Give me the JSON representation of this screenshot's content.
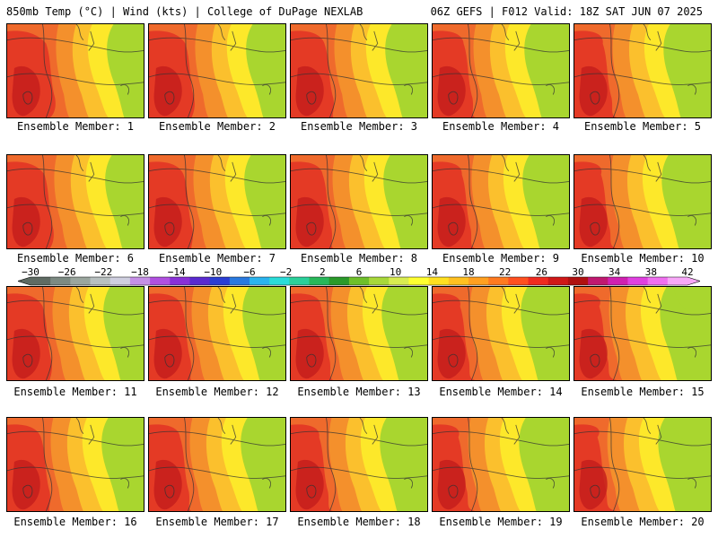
{
  "header": {
    "left_title": "850mb Temp (°C) | Wind (kts) | College of DuPage NEXLAB",
    "right_title": "06Z GEFS | F012 Valid: 18Z SAT JUN 07 2025"
  },
  "panels": [
    {
      "caption": "Ensemble Member: 1"
    },
    {
      "caption": "Ensemble Member: 2"
    },
    {
      "caption": "Ensemble Member: 3"
    },
    {
      "caption": "Ensemble Member: 4"
    },
    {
      "caption": "Ensemble Member: 5"
    },
    {
      "caption": "Ensemble Member: 6"
    },
    {
      "caption": "Ensemble Member: 7"
    },
    {
      "caption": "Ensemble Member: 8"
    },
    {
      "caption": "Ensemble Member: 9"
    },
    {
      "caption": "Ensemble Member: 10"
    },
    {
      "caption": "Ensemble Member: 11"
    },
    {
      "caption": "Ensemble Member: 12"
    },
    {
      "caption": "Ensemble Member: 13"
    },
    {
      "caption": "Ensemble Member: 14"
    },
    {
      "caption": "Ensemble Member: 15"
    },
    {
      "caption": "Ensemble Member: 16"
    },
    {
      "caption": "Ensemble Member: 17"
    },
    {
      "caption": "Ensemble Member: 18"
    },
    {
      "caption": "Ensemble Member: 19"
    },
    {
      "caption": "Ensemble Member: 20"
    }
  ],
  "colorbar": {
    "labels": [
      "−30",
      "−26",
      "−22",
      "−18",
      "−14",
      "−10",
      "−6",
      "−2",
      "2",
      "6",
      "10",
      "14",
      "18",
      "22",
      "26",
      "30",
      "34",
      "38",
      "42"
    ],
    "colors": [
      "#5f6b63",
      "#7c8a82",
      "#9aa69e",
      "#b8c0c0",
      "#cfcfe0",
      "#c590e6",
      "#b050e0",
      "#8a30d8",
      "#5a2ad0",
      "#2a3ed4",
      "#2a7ae0",
      "#2ab4ee",
      "#2adcd8",
      "#2ad09a",
      "#28b85a",
      "#2a9a2a",
      "#6fbf2a",
      "#a8d83a",
      "#d8ec50",
      "#ffff30",
      "#ffe020",
      "#ffc020",
      "#ffa020",
      "#ff7a20",
      "#ff5020",
      "#f02a20",
      "#d01818",
      "#b01010",
      "#c01870",
      "#d020b0",
      "#e040e0",
      "#f070f0",
      "#f8a8f8"
    ]
  },
  "map_colors": {
    "green": "#a9d62f",
    "yellow": "#fde82a",
    "gold": "#fbc02d",
    "orange": "#f4902c",
    "orange_red": "#ef6a2c",
    "red": "#e43a25",
    "dark_red": "#c51f1c"
  }
}
